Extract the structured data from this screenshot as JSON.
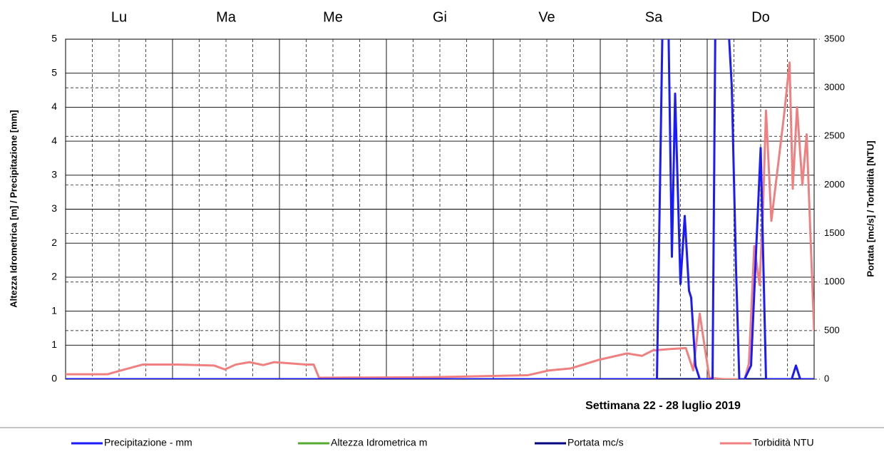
{
  "chart_data": {
    "type": "line",
    "subtitle": "Settimana 22 - 28 luglio 2019",
    "ylabel": "Altezza Idrometrica [m] / Precipitazione [mm]",
    "y2label": "Portata [mc/s] / Torbidità [NTU]",
    "categories": [
      "Lu",
      "Ma",
      "Me",
      "Gi",
      "Ve",
      "Sa",
      "Do"
    ],
    "xlim": [
      0,
      7
    ],
    "ylim": [
      0,
      5
    ],
    "yticks": [
      0,
      {
        "value": 0.5,
        "label": "1"
      },
      1,
      {
        "value": 1.5,
        "label": "2"
      },
      2,
      {
        "value": 2.5,
        "label": "3"
      },
      3,
      {
        "value": 3.5,
        "label": "4"
      },
      4,
      {
        "value": 4.5,
        "label": "5"
      },
      5
    ],
    "y2lim": [
      0,
      3500
    ],
    "y2ticks": [
      0,
      500,
      1000,
      1500,
      2000,
      2500,
      3000,
      3500
    ],
    "grid": true,
    "series": [
      {
        "name": "Precipitazione - mm",
        "color": "#1a1aff",
        "axis": "y",
        "x": [
          0,
          5.53,
          5.59,
          5.63,
          5.67,
          5.7,
          5.75,
          5.79,
          5.83,
          5.85,
          5.89,
          5.93,
          6.05,
          6.08,
          6.17,
          6.23,
          6.27,
          6.3,
          6.35,
          6.41,
          6.5,
          6.55,
          6.79,
          6.83,
          6.87,
          7
        ],
        "values": [
          0,
          0,
          6,
          6,
          1.8,
          4.2,
          1.4,
          2.4,
          1.3,
          1.2,
          0.2,
          0,
          0,
          6,
          6,
          4.3,
          1.6,
          0,
          0,
          0.2,
          3.4,
          0,
          0,
          0.2,
          0,
          0
        ]
      },
      {
        "name": "Altezza Idrometrica m",
        "color": "#55aa33",
        "axis": "y",
        "x": [
          0,
          7
        ],
        "values": [
          0,
          0
        ]
      },
      {
        "name": "Portata mc/s",
        "color": "#000080",
        "axis": "y2",
        "x": [
          0,
          7
        ],
        "values": [
          0,
          0
        ]
      },
      {
        "name": "Torbidità NTU",
        "color": "#f08080",
        "axis": "y2",
        "x": [
          0,
          0.39,
          0.52,
          0.72,
          1.05,
          1.39,
          1.49,
          1.59,
          1.72,
          1.85,
          1.95,
          2.25,
          2.32,
          2.37,
          3.4,
          4.32,
          4.52,
          4.72,
          4.99,
          5.25,
          5.39,
          5.49,
          5.65,
          5.8,
          5.87,
          5.93,
          5.99,
          6.02,
          6.15,
          6.35,
          6.39,
          6.44,
          6.49,
          6.52,
          6.55,
          6.6,
          6.72,
          6.77,
          6.8,
          6.84,
          6.89,
          6.93,
          7
        ],
        "values": [
          50,
          50,
          90,
          150,
          150,
          140,
          100,
          150,
          175,
          145,
          175,
          150,
          150,
          15,
          20,
          40,
          90,
          110,
          200,
          265,
          240,
          295,
          310,
          320,
          90,
          675,
          235,
          15,
          0,
          0,
          160,
          1370,
          970,
          1700,
          2765,
          1630,
          2730,
          3260,
          1960,
          2800,
          2000,
          2520,
          490
        ]
      }
    ]
  }
}
